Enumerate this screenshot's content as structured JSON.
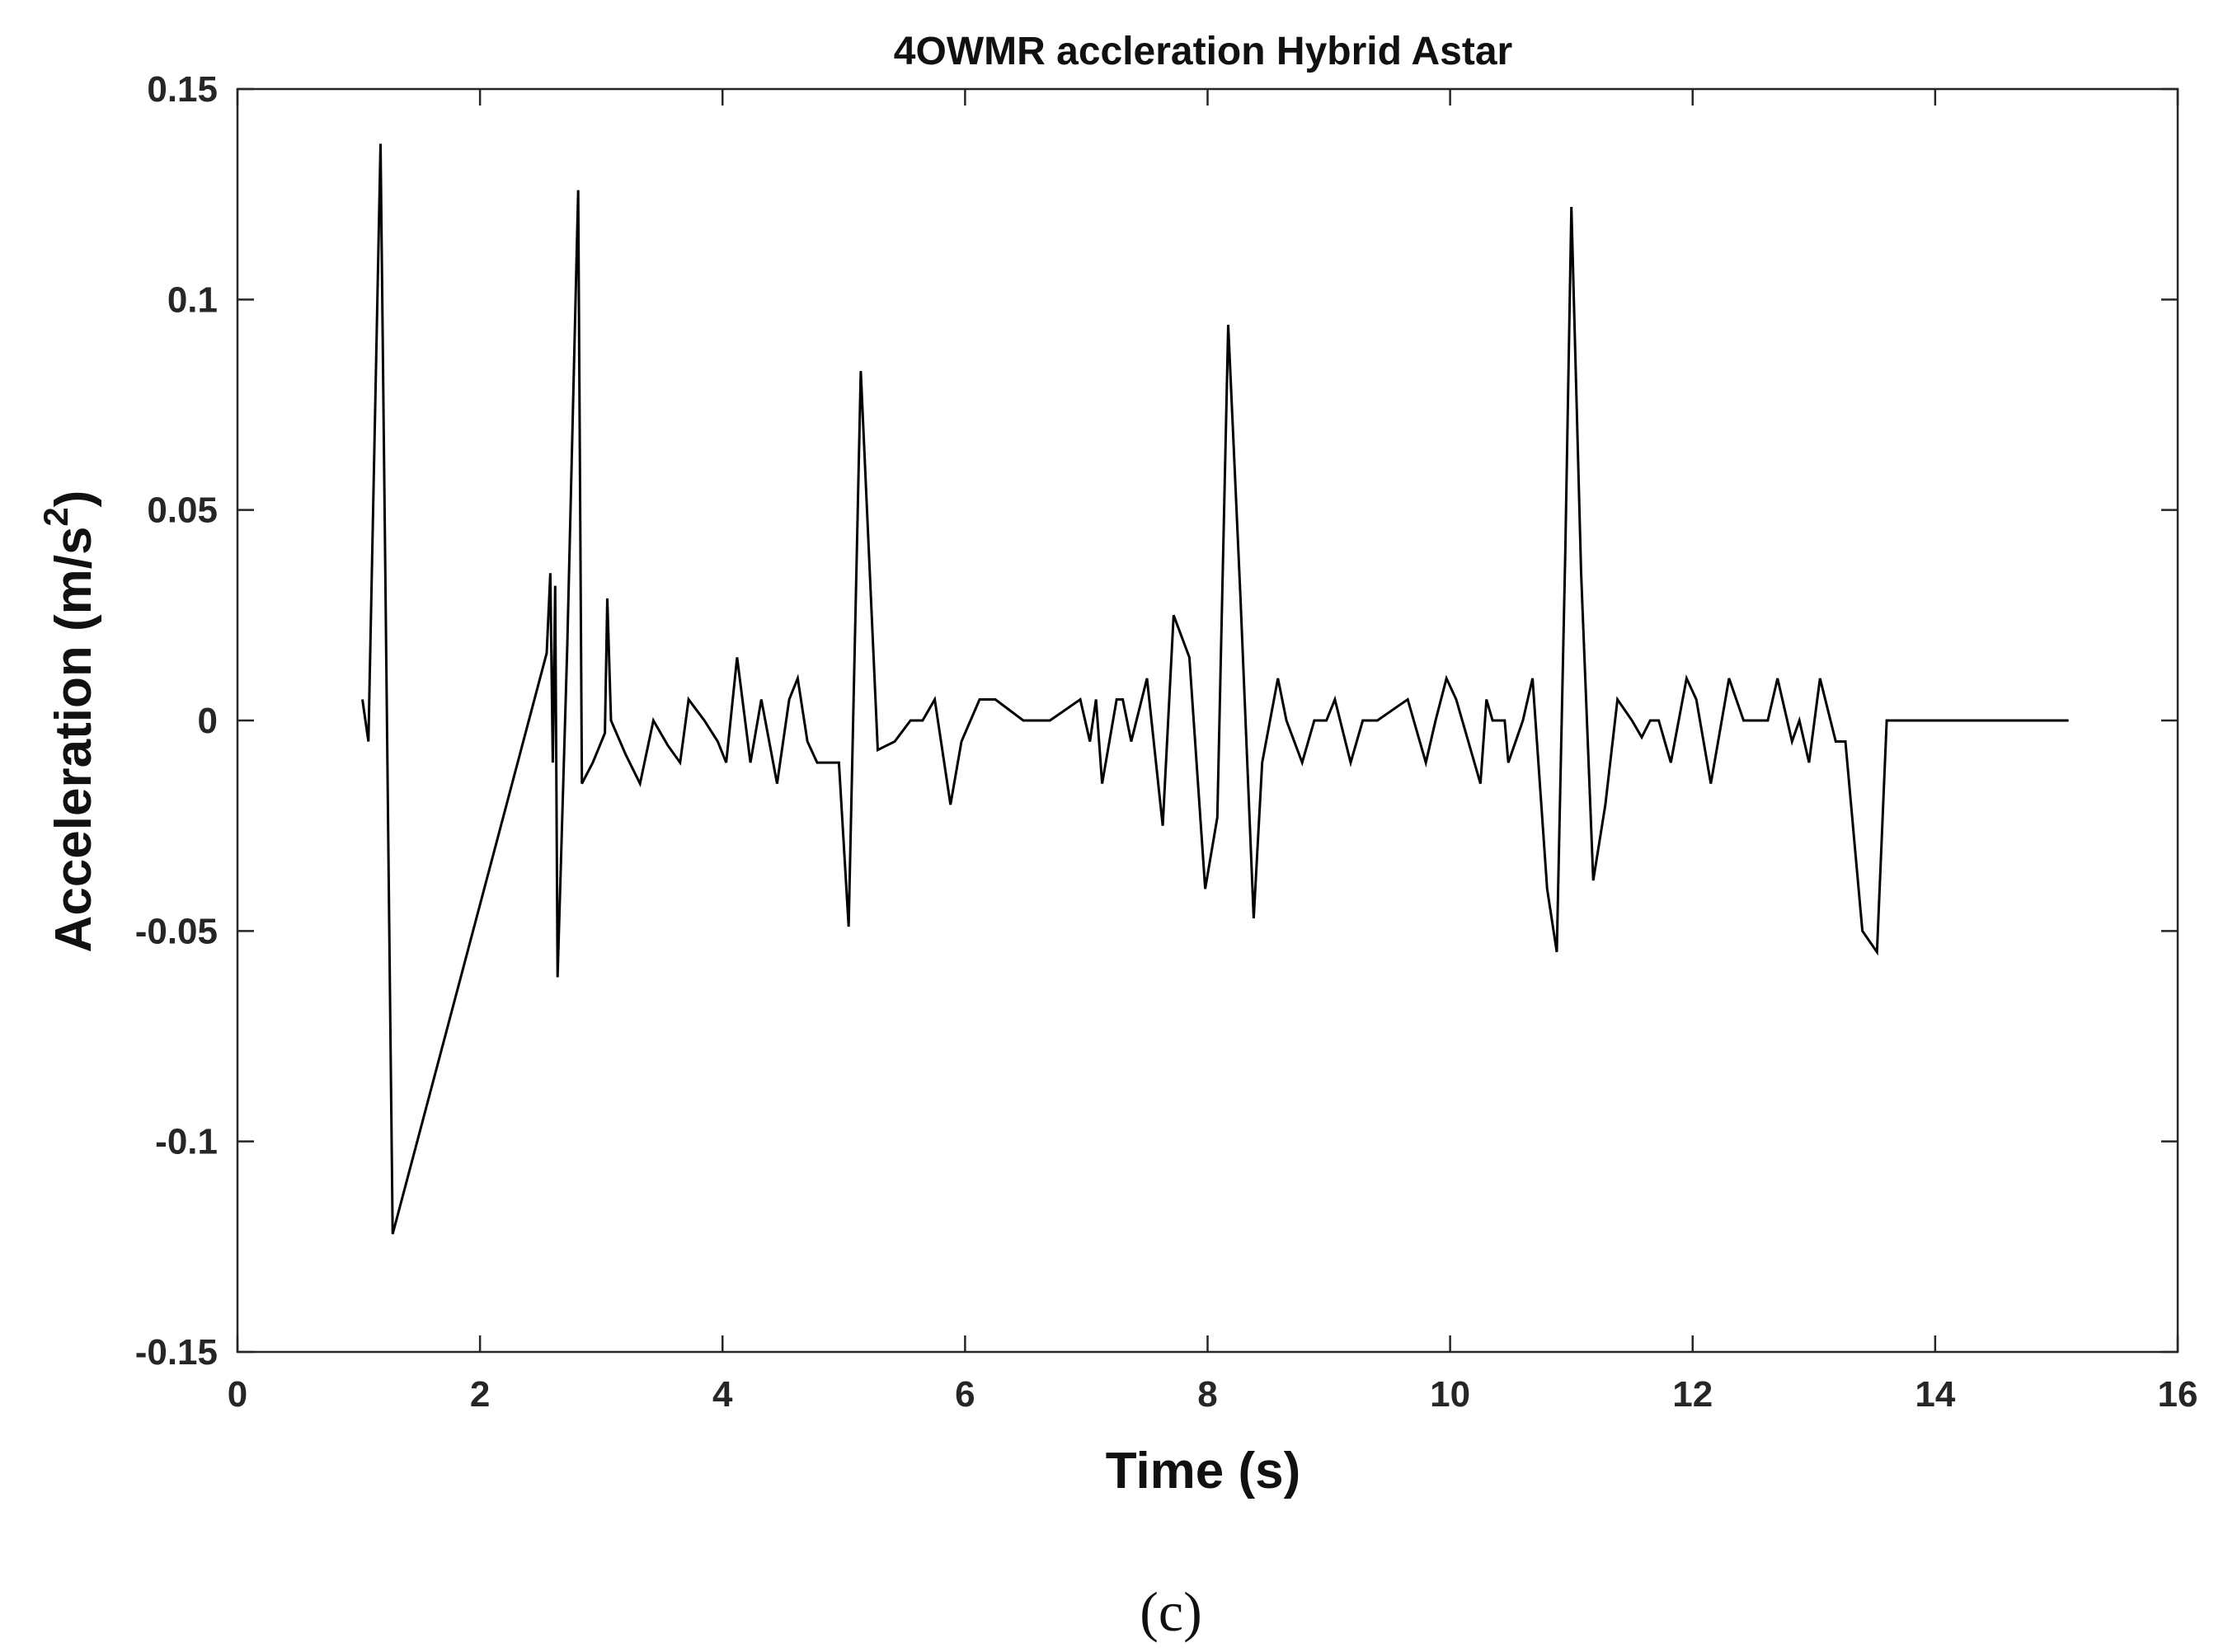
{
  "chart_data": {
    "type": "line",
    "title": "4OWMR accleration Hybrid Astar",
    "xlabel": "Time (s)",
    "ylabel": "Acceleration (m/s",
    "ylabel_superscript": "2",
    "ylabel_suffix": ")",
    "xlim": [
      0,
      16
    ],
    "ylim": [
      -0.15,
      0.15
    ],
    "x_ticks": [
      0,
      2,
      4,
      6,
      8,
      10,
      12,
      14,
      16
    ],
    "y_ticks": [
      -0.15,
      -0.1,
      -0.05,
      0,
      0.05,
      0.1,
      0.15
    ],
    "x_tick_labels": [
      "0",
      "2",
      "4",
      "6",
      "8",
      "10",
      "12",
      "14",
      "16"
    ],
    "y_tick_labels": [
      "-0.15",
      "-0.1",
      "-0.05",
      "0",
      "0.05",
      "0.1",
      "0.15"
    ],
    "grid": false,
    "line_color": "#000000",
    "series": [
      {
        "points": [
          [
            1.03,
            0.005
          ],
          [
            1.08,
            -0.005
          ],
          [
            1.18,
            0.137
          ],
          [
            1.28,
            -0.122
          ],
          [
            2.55,
            0.016
          ],
          [
            2.58,
            0.035
          ],
          [
            2.6,
            -0.01
          ],
          [
            2.62,
            0.032
          ],
          [
            2.64,
            -0.061
          ],
          [
            2.72,
            0.018
          ],
          [
            2.81,
            0.126
          ],
          [
            2.84,
            -0.015
          ],
          [
            2.93,
            -0.01
          ],
          [
            3.03,
            -0.003
          ],
          [
            3.05,
            0.029
          ],
          [
            3.08,
            0.0
          ],
          [
            3.2,
            -0.008
          ],
          [
            3.32,
            -0.015
          ],
          [
            3.43,
            0.0
          ],
          [
            3.55,
            -0.006
          ],
          [
            3.65,
            -0.01
          ],
          [
            3.72,
            0.005
          ],
          [
            3.85,
            0.0
          ],
          [
            3.96,
            -0.005
          ],
          [
            4.03,
            -0.01
          ],
          [
            4.12,
            0.015
          ],
          [
            4.23,
            -0.01
          ],
          [
            4.32,
            0.005
          ],
          [
            4.45,
            -0.015
          ],
          [
            4.55,
            0.005
          ],
          [
            4.62,
            0.01
          ],
          [
            4.7,
            -0.005
          ],
          [
            4.78,
            -0.01
          ],
          [
            4.96,
            -0.01
          ],
          [
            5.04,
            -0.049
          ],
          [
            5.14,
            0.083
          ],
          [
            5.28,
            -0.007
          ],
          [
            5.42,
            -0.005
          ],
          [
            5.55,
            0.0
          ],
          [
            5.65,
            0.0
          ],
          [
            5.75,
            0.005
          ],
          [
            5.88,
            -0.02
          ],
          [
            5.97,
            -0.005
          ],
          [
            6.12,
            0.005
          ],
          [
            6.25,
            0.005
          ],
          [
            6.48,
            0.0
          ],
          [
            6.7,
            0.0
          ],
          [
            6.95,
            0.005
          ],
          [
            7.03,
            -0.005
          ],
          [
            7.08,
            0.005
          ],
          [
            7.13,
            -0.015
          ],
          [
            7.25,
            0.005
          ],
          [
            7.3,
            0.005
          ],
          [
            7.37,
            -0.005
          ],
          [
            7.5,
            0.01
          ],
          [
            7.63,
            -0.025
          ],
          [
            7.72,
            0.025
          ],
          [
            7.85,
            0.015
          ],
          [
            7.98,
            -0.04
          ],
          [
            8.08,
            -0.023
          ],
          [
            8.17,
            0.094
          ],
          [
            8.27,
            0.03
          ],
          [
            8.38,
            -0.047
          ],
          [
            8.45,
            -0.01
          ],
          [
            8.58,
            0.01
          ],
          [
            8.65,
            0.0
          ],
          [
            8.78,
            -0.01
          ],
          [
            8.88,
            0.0
          ],
          [
            8.98,
            0.0
          ],
          [
            9.05,
            0.005
          ],
          [
            9.18,
            -0.01
          ],
          [
            9.28,
            0.0
          ],
          [
            9.4,
            0.0
          ],
          [
            9.55,
            0.003
          ],
          [
            9.65,
            0.005
          ],
          [
            9.8,
            -0.01
          ],
          [
            9.88,
            0.0
          ],
          [
            9.97,
            0.01
          ],
          [
            10.05,
            0.005
          ],
          [
            10.15,
            -0.005
          ],
          [
            10.25,
            -0.015
          ],
          [
            10.3,
            0.005
          ],
          [
            10.35,
            0.0
          ],
          [
            10.45,
            0.0
          ],
          [
            10.48,
            -0.01
          ],
          [
            10.6,
            0.0
          ],
          [
            10.68,
            0.01
          ],
          [
            10.8,
            -0.04
          ],
          [
            10.88,
            -0.055
          ],
          [
            10.95,
            0.04
          ],
          [
            11.0,
            0.122
          ],
          [
            11.08,
            0.035
          ],
          [
            11.18,
            -0.038
          ],
          [
            11.28,
            -0.02
          ],
          [
            11.38,
            0.005
          ],
          [
            11.5,
            0.0
          ],
          [
            11.58,
            -0.004
          ],
          [
            11.65,
            0.0
          ],
          [
            11.72,
            0.0
          ],
          [
            11.82,
            -0.01
          ],
          [
            11.95,
            0.01
          ],
          [
            12.03,
            0.005
          ],
          [
            12.15,
            -0.015
          ],
          [
            12.3,
            0.01
          ],
          [
            12.42,
            0.0
          ],
          [
            12.5,
            0.0
          ],
          [
            12.62,
            0.0
          ],
          [
            12.7,
            0.01
          ],
          [
            12.82,
            -0.005
          ],
          [
            12.88,
            0.0
          ],
          [
            12.96,
            -0.01
          ],
          [
            13.05,
            0.01
          ],
          [
            13.18,
            -0.005
          ],
          [
            13.26,
            -0.005
          ],
          [
            13.4,
            -0.05
          ],
          [
            13.52,
            -0.055
          ],
          [
            13.6,
            0.0
          ],
          [
            13.7,
            0.0
          ],
          [
            15.1,
            0.0
          ]
        ]
      }
    ]
  },
  "caption": "(c)"
}
